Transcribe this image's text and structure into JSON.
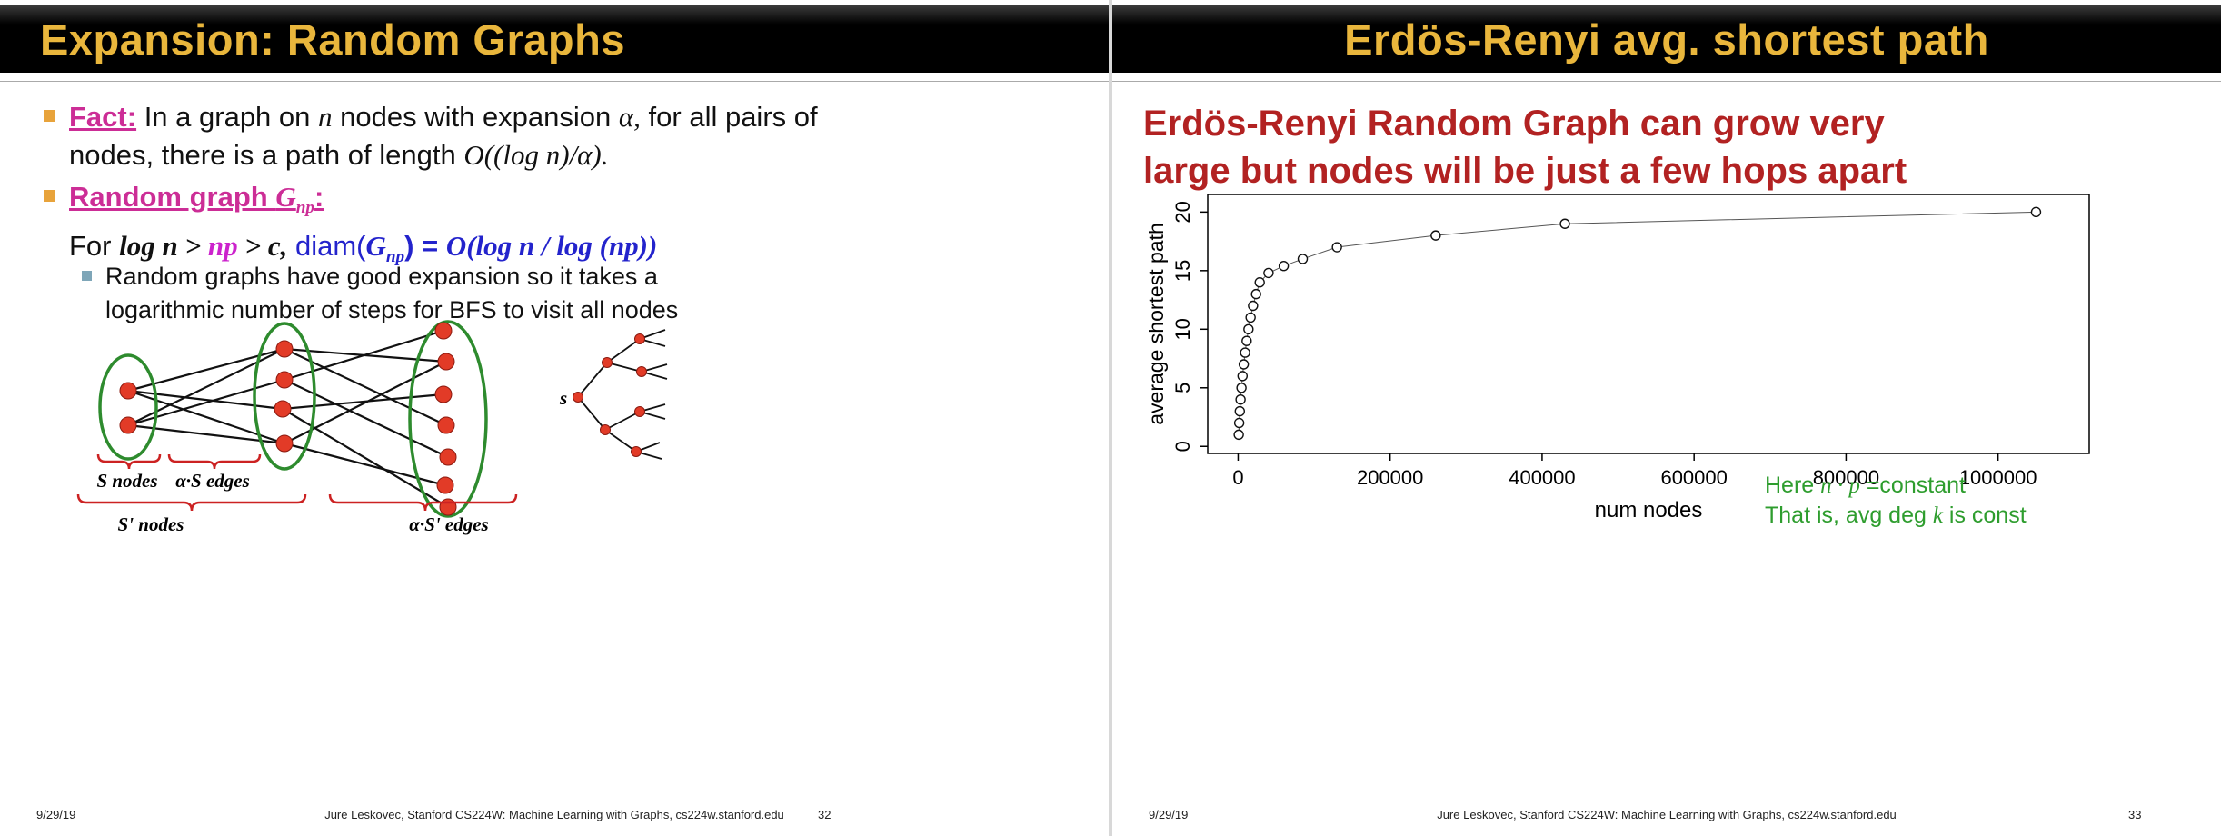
{
  "left_slide": {
    "title": "Expansion: Random Graphs",
    "fact": {
      "label": "Fact:",
      "seg1": " In a graph on ",
      "var_n": "n",
      "seg2": " nodes with expansion ",
      "var_alpha": "α,",
      "seg3": " for all pairs of nodes, there is a path of length ",
      "formula": "O((log n)/α)."
    },
    "random_graph": {
      "pre": "Random graph ",
      "g": "G",
      "gsub": "np",
      "colon": ":"
    },
    "formula_line": {
      "f1": "For ",
      "f2": "log n",
      "f3": " > ",
      "f4": "np",
      "f5": " > ",
      "f6": "c,",
      "f7": " diam(",
      "f8": "G",
      "f8sub": "np",
      "f9": ") = ",
      "f10": "O(log n / log (np))"
    },
    "subbullet": "Random graphs have good expansion so it takes a logarithmic number of steps for BFS to visit all nodes",
    "diagram": {
      "label_s_nodes": "S nodes",
      "label_as_edges": "α·S edges",
      "label_sp_nodes": "S' nodes",
      "label_asp_edges": "α·S' edges",
      "tree_root_label": "s"
    },
    "footer": {
      "date": "9/29/19",
      "attribution": "Jure Leskovec, Stanford CS224W: Machine Learning with Graphs, cs224w.stanford.edu",
      "page": "32"
    }
  },
  "right_slide": {
    "title": "Erdös-Renyi avg. shortest path",
    "heading_line1": "Erdös-Renyi Random Graph can grow very",
    "heading_line2": "large but nodes will be just a few hops apart",
    "note": {
      "l1a": "Here ",
      "l1b": "n · p",
      "l1c": " =constant",
      "l2a": "That is, avg deg ",
      "l2b": "k",
      "l2c": " is const"
    },
    "footer": {
      "date": "9/29/19",
      "attribution": "Jure Leskovec, Stanford CS224W: Machine Learning with Graphs, cs224w.stanford.edu",
      "page": "33"
    }
  },
  "chart_data": {
    "type": "scatter",
    "title": "",
    "xlabel": "num nodes",
    "ylabel": "average shortest path",
    "xlim": [
      -40000,
      1120000
    ],
    "ylim": [
      -0.6,
      21.5
    ],
    "xticks": [
      0,
      200000,
      400000,
      600000,
      800000,
      1000000
    ],
    "yticks": [
      0,
      5,
      10,
      15,
      20
    ],
    "legend": "none",
    "grid": false,
    "marker": "open-circle",
    "line": true,
    "points": [
      [
        800,
        1
      ],
      [
        1400,
        2
      ],
      [
        2200,
        3
      ],
      [
        3200,
        4
      ],
      [
        4400,
        5
      ],
      [
        5800,
        6
      ],
      [
        7400,
        7
      ],
      [
        9200,
        8
      ],
      [
        11200,
        9
      ],
      [
        13600,
        10
      ],
      [
        16400,
        11
      ],
      [
        19600,
        12
      ],
      [
        23600,
        13
      ],
      [
        28400,
        14
      ],
      [
        40000,
        14.8
      ],
      [
        60000,
        15.4
      ],
      [
        85000,
        16
      ],
      [
        130000,
        17
      ],
      [
        260000,
        18
      ],
      [
        430000,
        19
      ],
      [
        1050000,
        20
      ]
    ]
  },
  "colors": {
    "title_gold": "#E9B63C",
    "fact_pink": "#CC2D96",
    "magenta": "#CC22CC",
    "blue": "#2323CC",
    "heading_dark_red": "#B22222",
    "note_green": "#2E9D2E",
    "ellipse_green": "#2E8B2E",
    "node_red": "#E23B27",
    "brace_red": "#CC2222",
    "bullet_gold": "#E8A33B",
    "subbullet_blue": "#7EA6B8"
  }
}
